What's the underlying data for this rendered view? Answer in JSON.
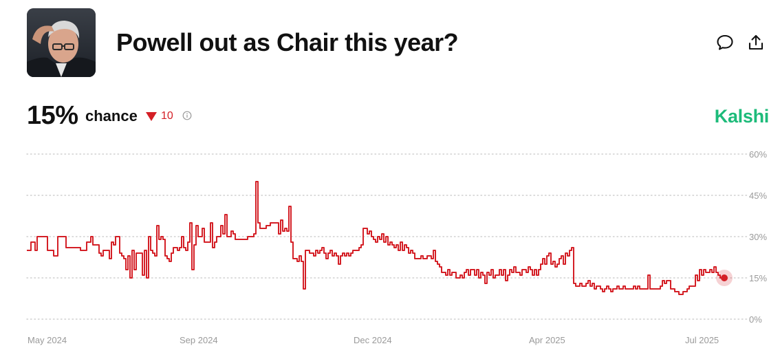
{
  "market": {
    "title": "Powell out as Chair this year?",
    "probability": "15%",
    "chance_label": "chance",
    "change": "10",
    "change_direction": "down",
    "brand": "Kalshi"
  },
  "icons": {
    "comment": "comment-icon",
    "share": "share-icon",
    "info": "info-icon",
    "avatar": "portrait-photo"
  },
  "colors": {
    "line": "#d41f26",
    "brand": "#1dbb7a",
    "grid": "#cfcfcf",
    "axis_text": "#9a9a9a"
  },
  "chart_data": {
    "type": "line",
    "x_ticks": [
      "May 2024",
      "Sep 2024",
      "Dec 2024",
      "Apr 2025",
      "Jul 2025"
    ],
    "y_ticks": [
      "0%",
      "15%",
      "30%",
      "45%",
      "60%"
    ],
    "ylim": [
      0,
      60
    ],
    "grid": true,
    "series": [
      {
        "values": [
          25,
          25,
          25,
          28,
          28,
          25,
          30,
          30,
          30,
          30,
          30,
          25,
          25,
          25,
          23,
          23,
          30,
          30,
          30,
          30,
          26,
          26,
          26,
          26,
          26,
          26,
          26,
          25,
          25,
          25,
          28,
          28,
          30,
          27,
          27,
          27,
          24,
          23,
          25,
          25,
          25,
          22,
          28,
          27,
          30,
          30,
          24,
          23,
          22,
          18,
          23,
          15,
          25,
          18,
          24,
          24,
          24,
          16,
          25,
          15,
          30,
          25,
          24,
          23,
          34,
          29,
          30,
          29,
          23,
          22,
          21,
          24,
          26,
          26,
          25,
          26,
          30,
          26,
          25,
          28,
          35,
          18,
          27,
          34,
          30,
          30,
          33,
          28,
          28,
          28,
          35,
          26,
          28,
          30,
          30,
          34,
          31,
          38,
          30,
          30,
          32,
          31,
          29,
          29,
          29,
          29,
          29,
          29,
          30,
          30,
          30,
          31,
          50,
          35,
          33,
          33,
          33,
          34,
          34,
          35,
          35,
          35,
          35,
          31,
          36,
          32,
          33,
          32,
          41,
          28,
          22,
          22,
          21,
          23,
          21,
          11,
          25,
          25,
          24,
          24,
          23,
          25,
          24,
          25,
          26,
          24,
          22,
          24,
          25,
          23,
          24,
          23,
          20,
          23,
          24,
          23,
          24,
          23,
          24,
          25,
          25,
          25,
          26,
          27,
          33,
          33,
          31,
          32,
          30,
          29,
          28,
          30,
          29,
          31,
          28,
          30,
          27,
          28,
          27,
          26,
          27,
          25,
          28,
          25,
          27,
          26,
          24,
          25,
          24,
          22,
          22,
          22,
          23,
          22,
          22,
          23,
          23,
          22,
          25,
          21,
          20,
          19,
          17,
          17,
          16,
          18,
          16,
          17,
          17,
          15,
          15,
          16,
          15,
          17,
          18,
          16,
          18,
          18,
          16,
          18,
          15,
          17,
          16,
          13,
          17,
          16,
          18,
          15,
          16,
          16,
          18,
          16,
          18,
          14,
          16,
          18,
          17,
          19,
          17,
          17,
          16,
          18,
          18,
          17,
          19,
          18,
          16,
          18,
          16,
          18,
          20,
          22,
          20,
          23,
          24,
          20,
          21,
          19,
          20,
          22,
          23,
          20,
          24,
          23,
          25,
          26,
          13,
          12,
          12,
          13,
          12,
          12,
          13,
          14,
          12,
          13,
          11,
          12,
          12,
          11,
          10,
          11,
          12,
          11,
          10,
          11,
          11,
          12,
          11,
          11,
          12,
          11,
          11,
          11,
          11,
          12,
          11,
          12,
          11,
          11,
          11,
          11,
          16,
          11,
          11,
          11,
          11,
          11,
          12,
          14,
          13,
          14,
          14,
          11,
          11,
          10,
          10,
          9,
          9,
          10,
          10,
          11,
          12,
          12,
          12,
          16,
          14,
          18,
          16,
          18,
          17,
          17,
          18,
          17,
          19,
          17,
          16,
          15,
          15
        ]
      }
    ]
  }
}
